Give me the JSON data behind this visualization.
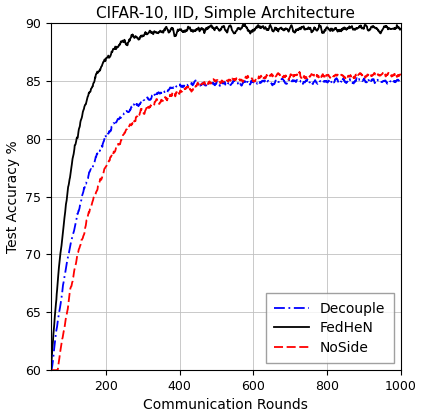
{
  "title": "CIFAR-10, IID, Simple Architecture",
  "xlabel": "Communication Rounds",
  "ylabel": "Test Accuracy %",
  "xlim": [
    50,
    1000
  ],
  "ylim": [
    60,
    90
  ],
  "yticks": [
    60,
    65,
    70,
    75,
    80,
    85,
    90
  ],
  "xticks": [
    200,
    400,
    600,
    800,
    1000
  ],
  "grid": true,
  "fedhen_color": "#000000",
  "decouple_color": "#0000ff",
  "noside_color": "#ff0000",
  "background_color": "#ffffff",
  "title_fontsize": 11,
  "label_fontsize": 10,
  "tick_fontsize": 9,
  "legend_fontsize": 10
}
